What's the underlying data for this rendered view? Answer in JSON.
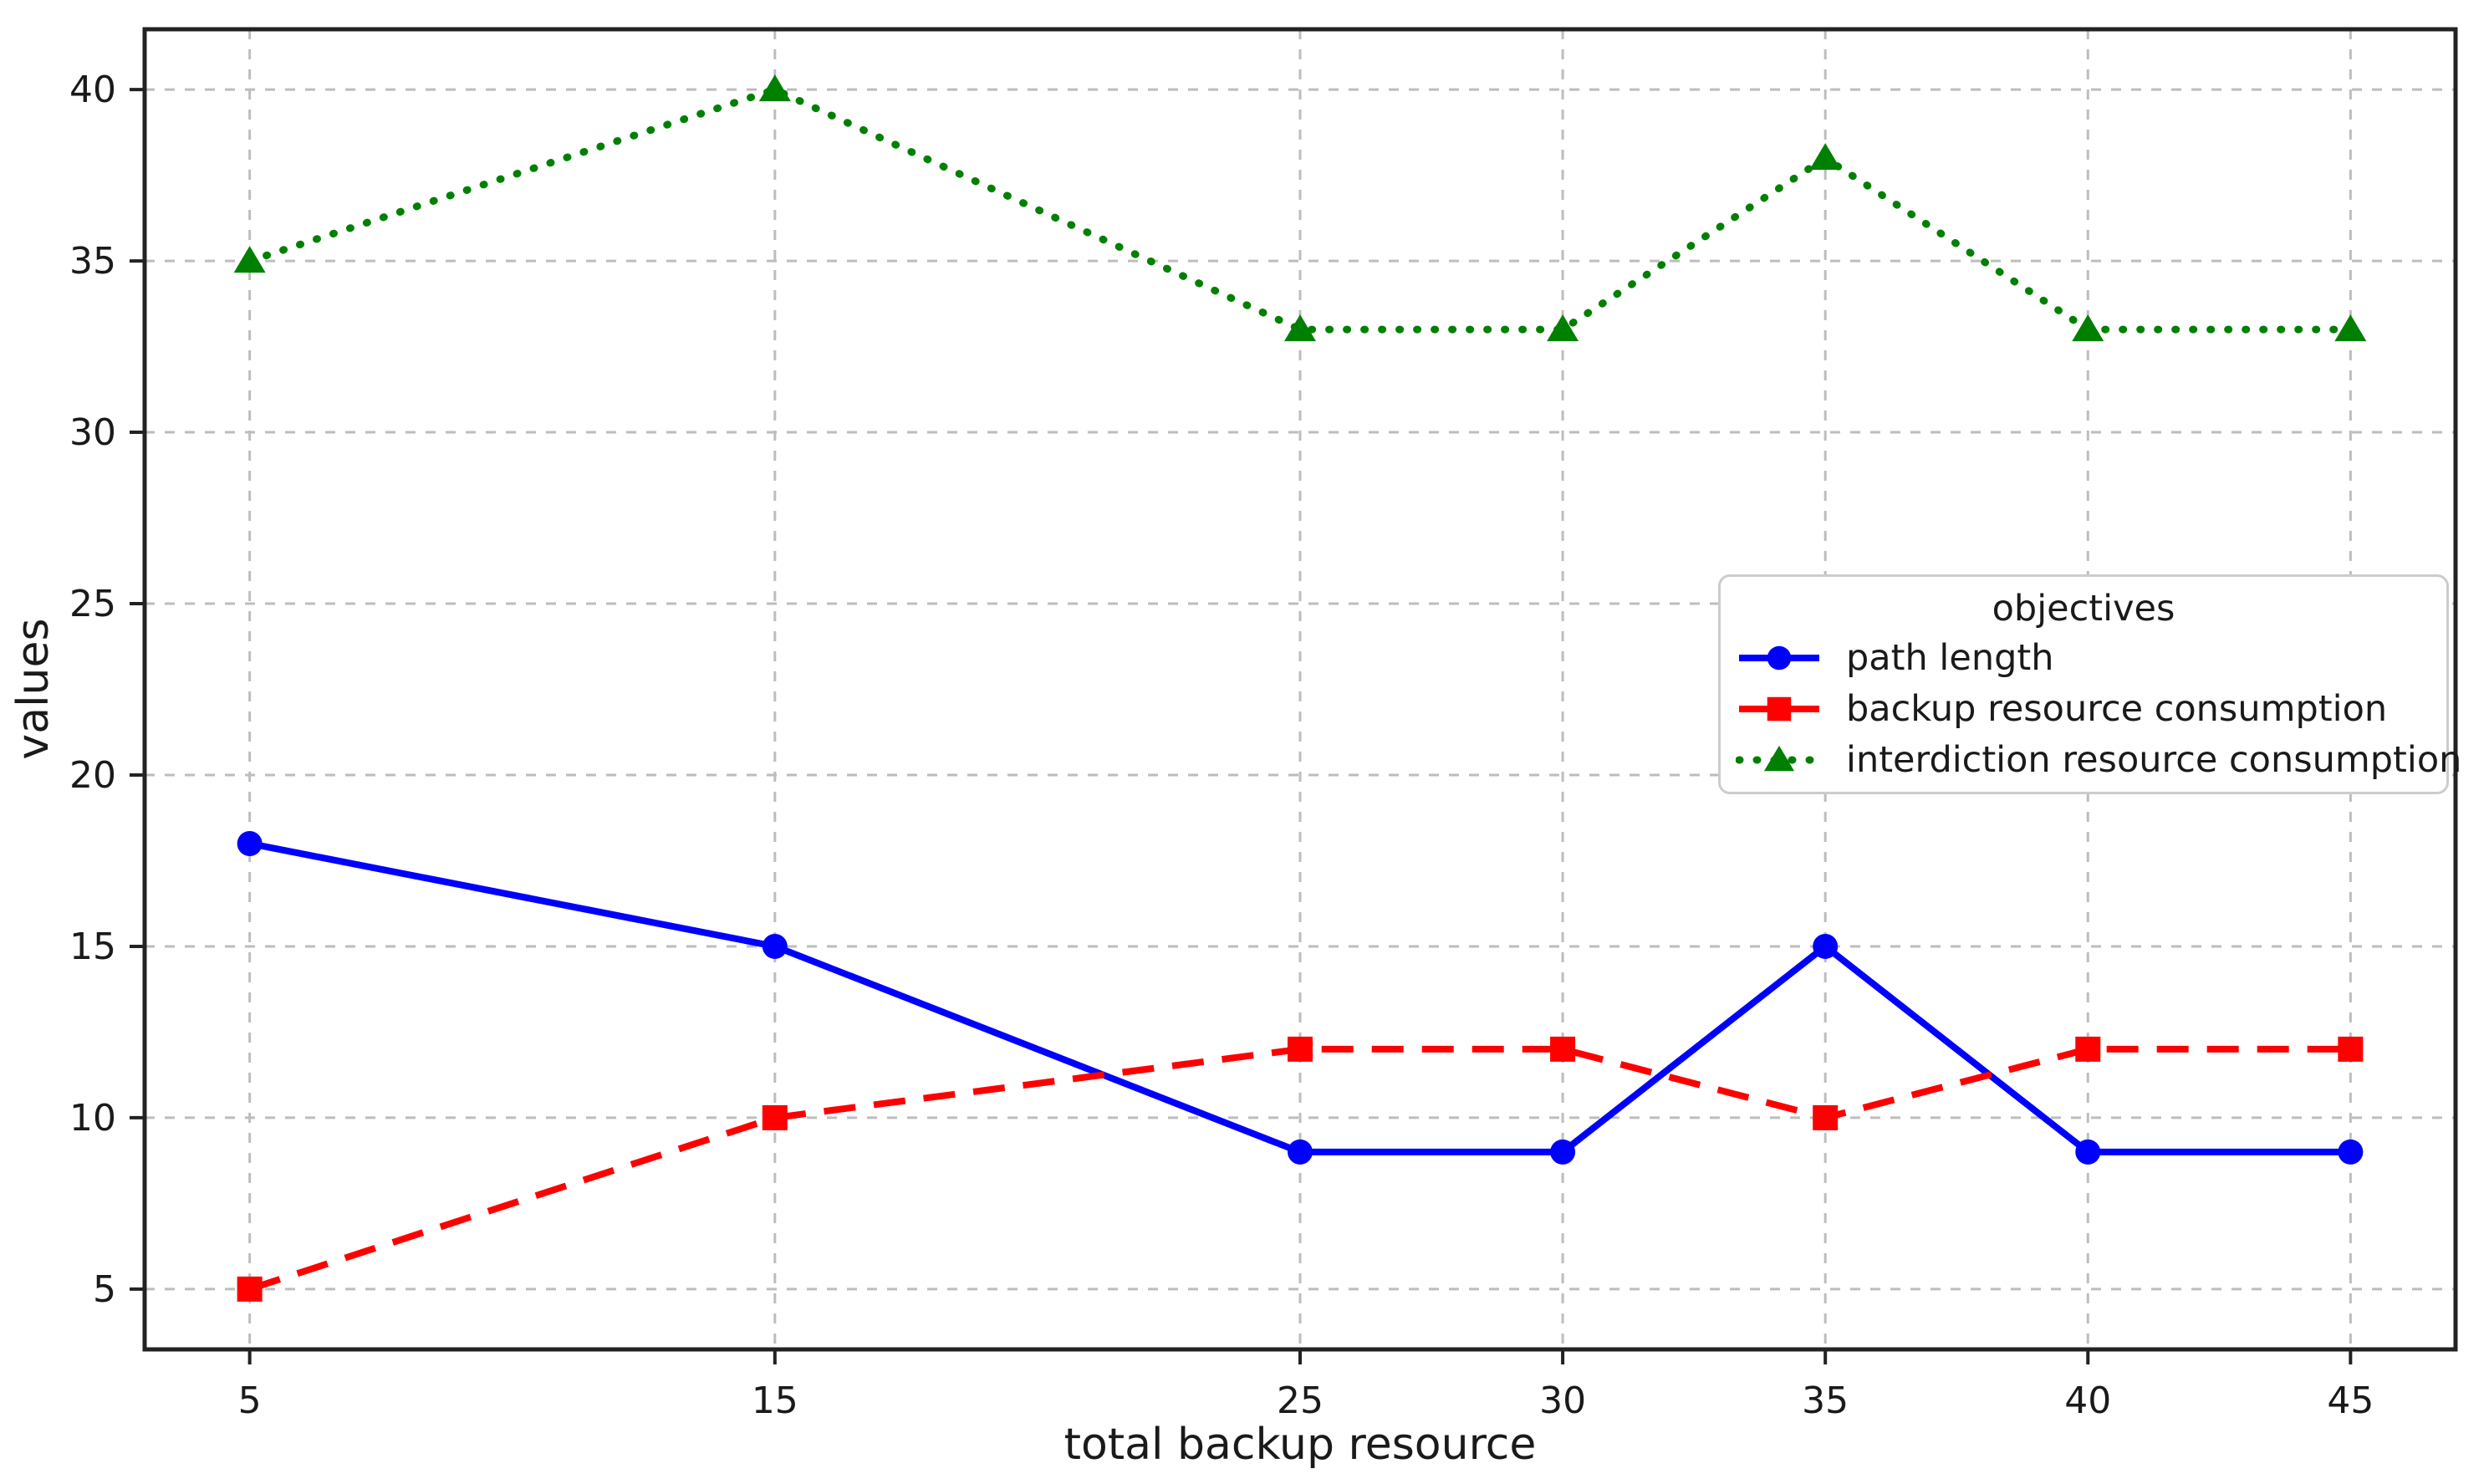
{
  "chart_data": {
    "type": "line",
    "title": "",
    "xlabel": "total backup resource",
    "ylabel": "values",
    "x": [
      5,
      15,
      25,
      30,
      35,
      40,
      45
    ],
    "xticks": [
      "5",
      "15",
      "25",
      "30",
      "35",
      "40",
      "45"
    ],
    "yticks": [
      "5",
      "10",
      "15",
      "20",
      "25",
      "30",
      "35",
      "40"
    ],
    "xlim": [
      3,
      47
    ],
    "ylim": [
      3.24,
      41.76
    ],
    "grid": true,
    "grid_style": "dashed",
    "legend_title": "objectives",
    "legend_position": "center-right",
    "series": [
      {
        "name": "path length",
        "color": "#0000ff",
        "linestyle": "solid",
        "marker": "circle",
        "values": [
          18,
          15,
          9,
          9,
          15,
          9,
          9
        ]
      },
      {
        "name": "backup resource consumption",
        "color": "#ff0000",
        "linestyle": "dashed",
        "marker": "square",
        "values": [
          5,
          10,
          12,
          12,
          10,
          12,
          12
        ]
      },
      {
        "name": "interdiction resource consumption",
        "color": "#008000",
        "linestyle": "dotted",
        "marker": "triangle",
        "values": [
          35,
          40,
          33,
          33,
          38,
          33,
          33
        ]
      }
    ],
    "colors": {
      "background": "#ffffff",
      "grid": "#bdbdbd",
      "axis": "#222222",
      "text": "#1a1a1a",
      "legend_border": "#cccccc"
    }
  }
}
